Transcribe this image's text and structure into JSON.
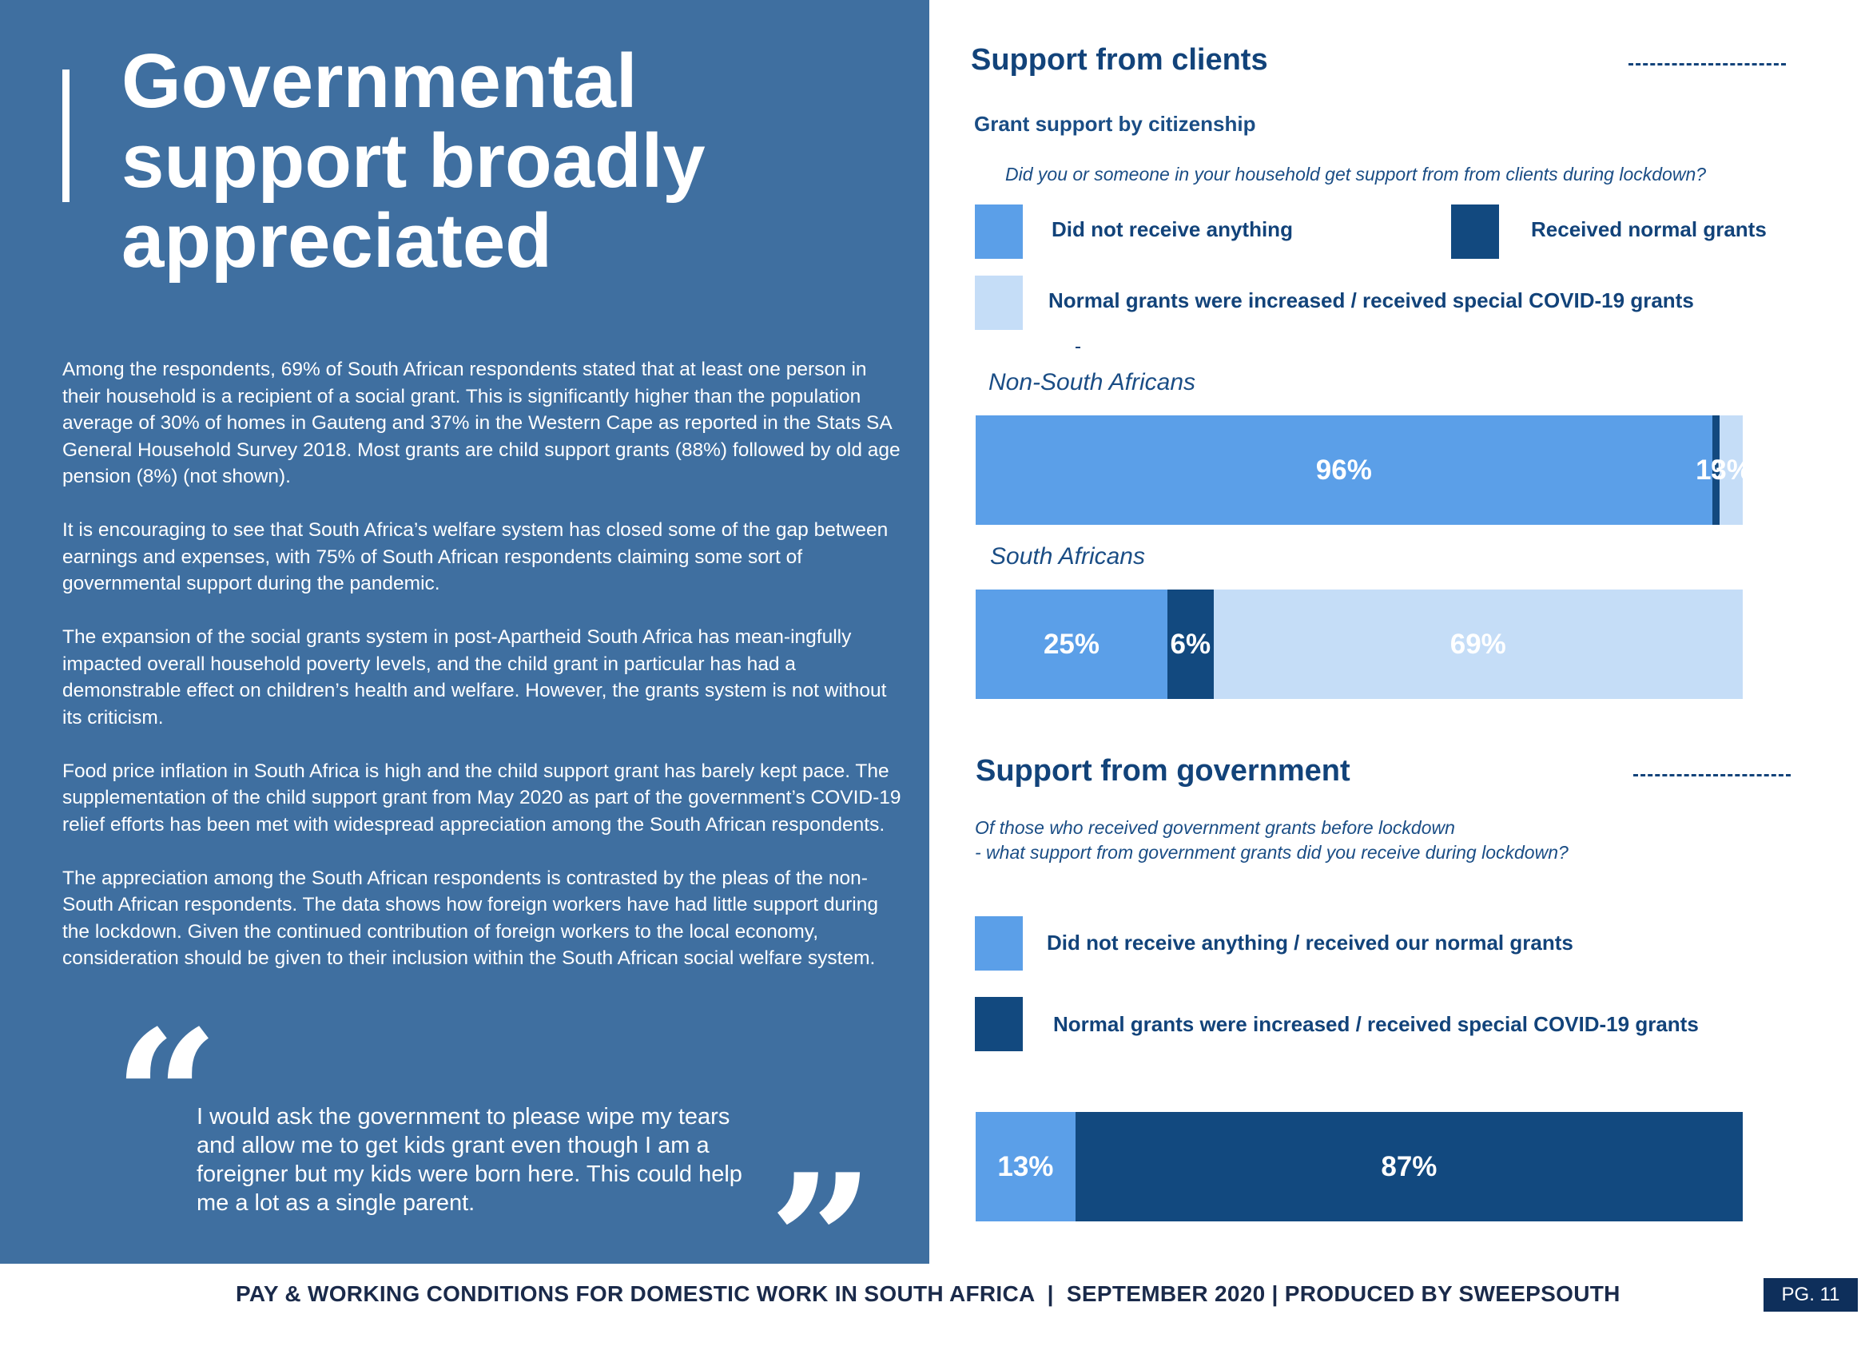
{
  "left": {
    "title_lines": [
      "Governmental",
      "support broadly",
      "appreciated"
    ],
    "paragraphs": [
      "Among the respondents, 69% of South African respondents stated that at least one person in their household is a recipient of a social grant. This is significantly higher than the population average of 30% of homes in Gauteng and 37% in the Western Cape as reported in the Stats SA General Household Survey 2018. Most grants are child support grants (88%) followed by old age pension (8%) (not shown).",
      "It is encouraging to see that South Africa’s welfare system has closed some of the gap between earnings and expenses, with 75% of South African respondents claiming some sort of governmental support during the pandemic.",
      "The expansion of the social grants system in post-Apartheid South Africa has mean-ingfully impacted overall household poverty levels, and the child grant in particular has had a demonstrable effect on children’s health and welfare. However, the grants system is not without its criticism.",
      "Food price inflation in South Africa is high and the child support grant has barely kept pace. The supplementation of the child support grant from May 2020 as part of the government’s COVID-19 relief efforts has been met with widespread appreciation among the South African respondents.",
      "The appreciation among the South African respondents is contrasted by the pleas of the non-South African respondents. The data shows how foreign workers have had little support during the lockdown. Given the continued contribution of foreign workers to the local economy, consideration should be given to their inclusion within the South African social welfare system."
    ],
    "quote_open": "“",
    "quote_close": "”",
    "quote": "I would ask the government to please wipe my tears and allow me to get kids grant even though I am a foreigner but my kids were born here. This could help me a lot as a single parent."
  },
  "colors": {
    "left_panel": "#3f6fa0",
    "series_light": "#5b9fe8",
    "series_dark": "#12497f",
    "series_pale": "#c5ddf7",
    "heading": "#12437a",
    "page_badge": "#0e2f5b"
  },
  "chart_data": [
    {
      "type": "bar",
      "orientation": "horizontal",
      "stacked": true,
      "title": "Support from clients",
      "subtitle": "Grant support by citizenship",
      "question": "Did you or someone in your household get support from from clients during lockdown?",
      "stray_mark": "-",
      "categories": [
        "Non-South Africans",
        "South Africans"
      ],
      "series": [
        {
          "name": "Did not receive anything",
          "color": "#5b9fe8",
          "values": [
            96,
            25
          ],
          "labels": [
            "96%",
            "25%"
          ]
        },
        {
          "name": "Received normal grants",
          "color": "#12497f",
          "values": [
            1,
            6
          ],
          "labels": [
            "1%",
            "6%"
          ]
        },
        {
          "name": "Normal grants were increased / received special COVID-19 grants",
          "color": "#c5ddf7",
          "values": [
            3,
            69
          ],
          "labels": [
            "3%",
            "69%"
          ]
        }
      ],
      "xlim": [
        0,
        100
      ],
      "legend": "top"
    },
    {
      "type": "bar",
      "orientation": "horizontal",
      "stacked": true,
      "title": "Support from government",
      "question_lines": [
        "Of those who received government grants before lockdown",
        "- what support from government grants did you receive during lockdown?"
      ],
      "categories": [
        ""
      ],
      "series": [
        {
          "name": "Did not receive anything / received our normal grants",
          "color": "#5b9fe8",
          "values": [
            13
          ],
          "labels": [
            "13%"
          ]
        },
        {
          "name": "Normal grants were increased / received special COVID-19 grants",
          "color": "#12497f",
          "values": [
            87
          ],
          "labels": [
            "87%"
          ]
        }
      ],
      "xlim": [
        0,
        100
      ],
      "legend": "top"
    }
  ],
  "footer": {
    "text": "PAY & WORKING CONDITIONS FOR DOMESTIC WORK IN SOUTH AFRICA  |  SEPTEMBER 2020 | PRODUCED BY SWEEPSOUTH",
    "page": "PG. 11"
  }
}
